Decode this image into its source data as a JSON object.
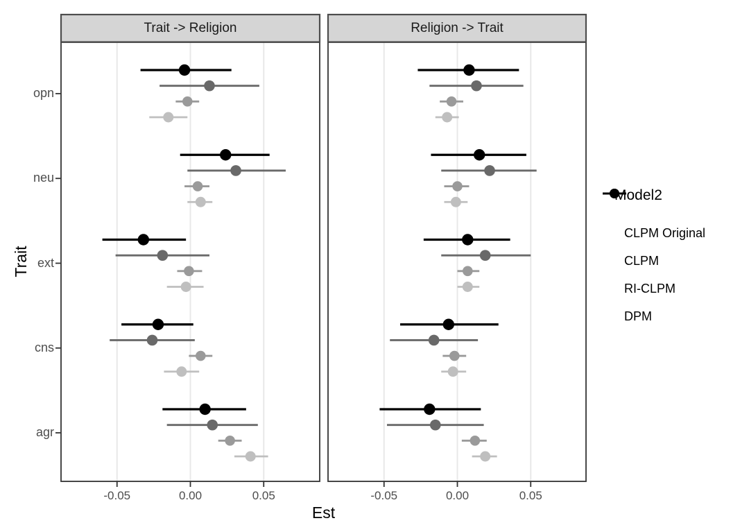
{
  "chart_data": {
    "type": "scatter",
    "subtype": "faceted dot-and-whisker (pointrange / forest) plot",
    "facets": [
      "Trait -> Religion",
      "Religion -> Trait"
    ],
    "xlabel": "Est",
    "ylabel": "Trait",
    "categories": [
      "opn",
      "neu",
      "ext",
      "cns",
      "agr"
    ],
    "x_ticks": [
      "-0.05",
      "0.00",
      "0.05"
    ],
    "x_tick_values": [
      -0.05,
      0.0,
      0.05
    ],
    "xlim": [
      -0.088,
      0.088
    ],
    "grid": "vertical major gridlines only",
    "legend": {
      "title": "Model2",
      "position": "right",
      "entries": [
        "CLPM Original",
        "CLPM",
        "RI-CLPM",
        "DPM"
      ]
    },
    "models": [
      {
        "name": "CLPM Original",
        "color": "#bfbfbf"
      },
      {
        "name": "CLPM",
        "color": "#9a9a9a"
      },
      {
        "name": "RI-CLPM",
        "color": "#696969"
      },
      {
        "name": "DPM",
        "color": "#000000"
      }
    ],
    "row_order_top_to_bottom": [
      "DPM",
      "RI-CLPM",
      "CLPM",
      "CLPM Original"
    ],
    "panels": [
      {
        "facet": "Trait -> Religion",
        "groups": [
          {
            "trait": "opn",
            "values": {
              "DPM": {
                "est": -0.004,
                "lo": -0.034,
                "hi": 0.028
              },
              "RI-CLPM": {
                "est": 0.013,
                "lo": -0.021,
                "hi": 0.047
              },
              "CLPM": {
                "est": -0.002,
                "lo": -0.01,
                "hi": 0.006
              },
              "CLPM Original": {
                "est": -0.015,
                "lo": -0.028,
                "hi": -0.002
              }
            }
          },
          {
            "trait": "neu",
            "values": {
              "DPM": {
                "est": 0.024,
                "lo": -0.007,
                "hi": 0.054
              },
              "RI-CLPM": {
                "est": 0.031,
                "lo": -0.002,
                "hi": 0.065
              },
              "CLPM": {
                "est": 0.005,
                "lo": -0.004,
                "hi": 0.013
              },
              "CLPM Original": {
                "est": 0.007,
                "lo": -0.002,
                "hi": 0.015
              }
            }
          },
          {
            "trait": "ext",
            "values": {
              "DPM": {
                "est": -0.032,
                "lo": -0.06,
                "hi": -0.003
              },
              "RI-CLPM": {
                "est": -0.019,
                "lo": -0.051,
                "hi": 0.013
              },
              "CLPM": {
                "est": -0.001,
                "lo": -0.009,
                "hi": 0.008
              },
              "CLPM Original": {
                "est": -0.003,
                "lo": -0.016,
                "hi": 0.009
              }
            }
          },
          {
            "trait": "cns",
            "values": {
              "DPM": {
                "est": -0.022,
                "lo": -0.047,
                "hi": 0.002
              },
              "RI-CLPM": {
                "est": -0.026,
                "lo": -0.055,
                "hi": 0.003
              },
              "CLPM": {
                "est": 0.007,
                "lo": -0.001,
                "hi": 0.015
              },
              "CLPM Original": {
                "est": -0.006,
                "lo": -0.018,
                "hi": 0.006
              }
            }
          },
          {
            "trait": "agr",
            "values": {
              "DPM": {
                "est": 0.01,
                "lo": -0.019,
                "hi": 0.038
              },
              "RI-CLPM": {
                "est": 0.015,
                "lo": -0.016,
                "hi": 0.046
              },
              "CLPM": {
                "est": 0.027,
                "lo": 0.019,
                "hi": 0.035
              },
              "CLPM Original": {
                "est": 0.041,
                "lo": 0.03,
                "hi": 0.053
              }
            }
          }
        ]
      },
      {
        "facet": "Religion -> Trait",
        "groups": [
          {
            "trait": "opn",
            "values": {
              "DPM": {
                "est": 0.008,
                "lo": -0.027,
                "hi": 0.042
              },
              "RI-CLPM": {
                "est": 0.013,
                "lo": -0.019,
                "hi": 0.045
              },
              "CLPM": {
                "est": -0.004,
                "lo": -0.012,
                "hi": 0.004
              },
              "CLPM Original": {
                "est": -0.007,
                "lo": -0.015,
                "hi": 0.001
              }
            }
          },
          {
            "trait": "neu",
            "values": {
              "DPM": {
                "est": 0.015,
                "lo": -0.018,
                "hi": 0.047
              },
              "RI-CLPM": {
                "est": 0.022,
                "lo": -0.011,
                "hi": 0.054
              },
              "CLPM": {
                "est": 0.0,
                "lo": -0.009,
                "hi": 0.008
              },
              "CLPM Original": {
                "est": -0.001,
                "lo": -0.009,
                "hi": 0.007
              }
            }
          },
          {
            "trait": "ext",
            "values": {
              "DPM": {
                "est": 0.007,
                "lo": -0.023,
                "hi": 0.036
              },
              "RI-CLPM": {
                "est": 0.019,
                "lo": -0.011,
                "hi": 0.05
              },
              "CLPM": {
                "est": 0.007,
                "lo": 0.0,
                "hi": 0.015
              },
              "CLPM Original": {
                "est": 0.007,
                "lo": 0.0,
                "hi": 0.015
              }
            }
          },
          {
            "trait": "cns",
            "values": {
              "DPM": {
                "est": -0.006,
                "lo": -0.039,
                "hi": 0.028
              },
              "RI-CLPM": {
                "est": -0.016,
                "lo": -0.046,
                "hi": 0.014
              },
              "CLPM": {
                "est": -0.002,
                "lo": -0.01,
                "hi": 0.006
              },
              "CLPM Original": {
                "est": -0.003,
                "lo": -0.011,
                "hi": 0.006
              }
            }
          },
          {
            "trait": "agr",
            "values": {
              "DPM": {
                "est": -0.019,
                "lo": -0.053,
                "hi": 0.016
              },
              "RI-CLPM": {
                "est": -0.015,
                "lo": -0.048,
                "hi": 0.018
              },
              "CLPM": {
                "est": 0.012,
                "lo": 0.003,
                "hi": 0.02
              },
              "CLPM Original": {
                "est": 0.019,
                "lo": 0.01,
                "hi": 0.027
              }
            }
          }
        ]
      }
    ],
    "colors": {
      "strip_fill": "#d5d5d5",
      "strip_border": "#4d4d4d",
      "panel_border": "#333333",
      "gridline": "#e8e8e8",
      "tick_label": "#4d4d4d",
      "axis_title": "#000000"
    }
  }
}
